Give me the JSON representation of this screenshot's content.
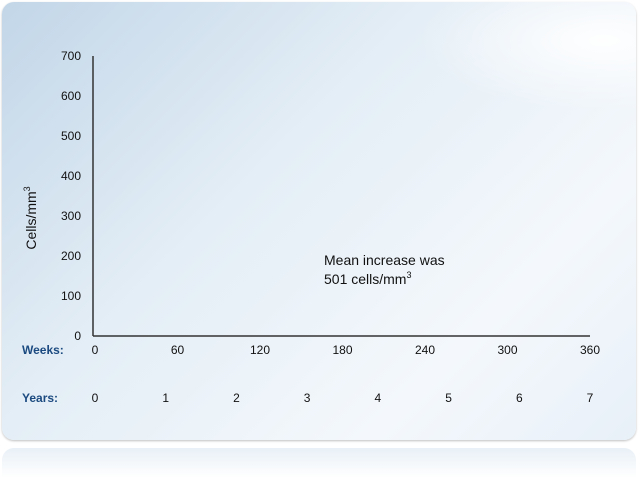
{
  "chart_data": {
    "type": "line",
    "ylabel": "Cells/mm",
    "ylabel_superscript": "3",
    "ylim": [
      0,
      700
    ],
    "y_ticks": [
      "0",
      "100",
      "200",
      "300",
      "400",
      "500",
      "600",
      "700"
    ],
    "xlim": [
      0,
      360
    ],
    "x_rows": [
      {
        "label": "Weeks:",
        "ticks": [
          "0",
          "60",
          "120",
          "180",
          "240",
          "300",
          "360"
        ]
      },
      {
        "label": "Years:",
        "ticks": [
          "0",
          "1",
          "2",
          "3",
          "4",
          "5",
          "6",
          "7"
        ]
      }
    ],
    "annotation": {
      "line1": "Mean increase was",
      "line2": "501 cells/mm",
      "line2_superscript": "3"
    },
    "series": [],
    "grid": false,
    "colors": {
      "row_label": "#1b4a80",
      "axis": "#333333"
    }
  }
}
